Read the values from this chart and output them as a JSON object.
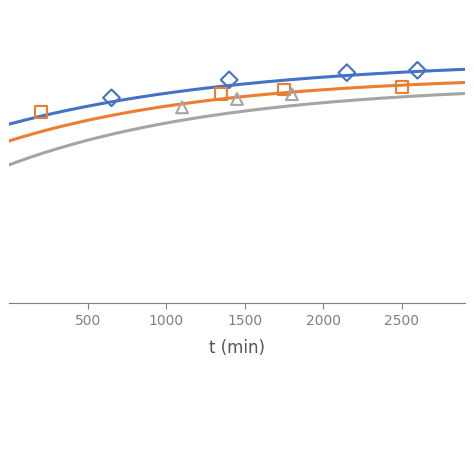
{
  "title": "",
  "xlabel": "t (min)",
  "ylabel": "",
  "xlim": [
    0,
    2900
  ],
  "ylim": [
    0.0,
    1.15
  ],
  "xticks": [
    500,
    1000,
    1500,
    2000,
    2500
  ],
  "blue_scatter_x": [
    650,
    1400,
    2150,
    2600
  ],
  "blue_scatter_y": [
    0.86,
    0.935,
    0.965,
    0.975
  ],
  "orange_scatter_x": [
    200,
    1350,
    1750,
    2500
  ],
  "orange_scatter_y": [
    0.8,
    0.875,
    0.895,
    0.905
  ],
  "gray_scatter_x": [
    1100,
    1450,
    1800
  ],
  "gray_scatter_y": [
    0.82,
    0.855,
    0.875
  ],
  "blue_color": "#4472C4",
  "orange_color": "#ED7D31",
  "gray_color": "#A5A5A5",
  "curve_start": 0,
  "curve_end": 2900,
  "blue_curve_params": [
    1.02,
    0.00065
  ],
  "orange_curve_params": [
    0.955,
    0.00075
  ],
  "gray_curve_params": [
    0.92,
    0.00072
  ],
  "background_color": "#ffffff",
  "marker_size": 72,
  "line_width": 2.2
}
